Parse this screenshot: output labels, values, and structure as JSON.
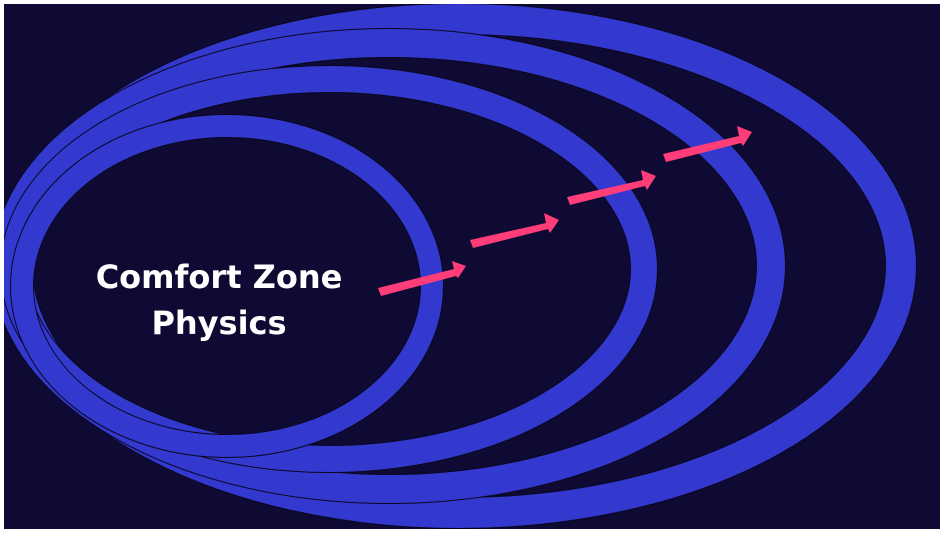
{
  "diagram": {
    "center_label": {
      "line1": "Comfort Zone",
      "line2": "Physics"
    },
    "rings": 4,
    "arrows": 4
  },
  "colors": {
    "background": "#0e0a33",
    "ring": "#3338cf",
    "ring_outline": "#0a0720",
    "arrow": "#ff3d78",
    "label": "#ffffff"
  }
}
